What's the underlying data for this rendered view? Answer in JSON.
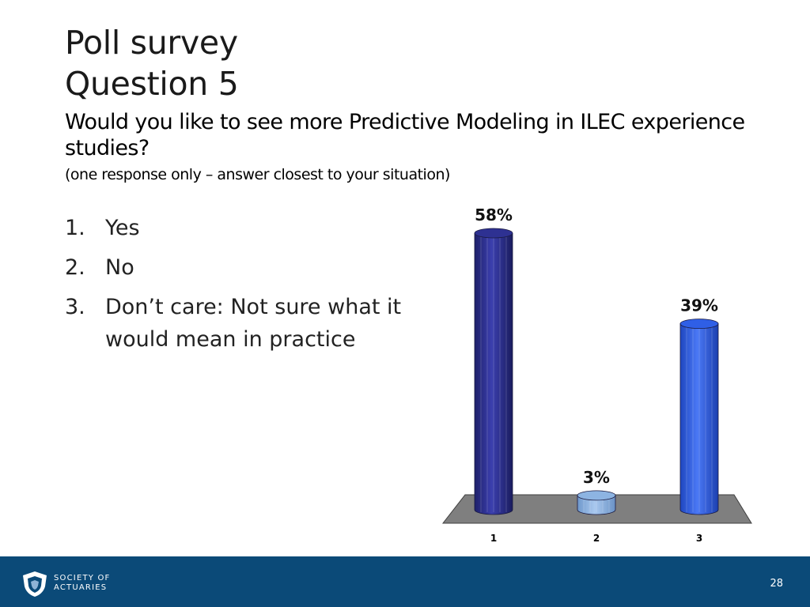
{
  "slide": {
    "title_line1": "Poll survey",
    "title_line2": "Question 5",
    "question": "Would you like to see more Predictive Modeling in ILEC experience studies?",
    "instruction": "(one response only – answer closest to your situation)",
    "options": [
      {
        "number": "1.",
        "text": "Yes"
      },
      {
        "number": "2.",
        "text": "No"
      },
      {
        "number": "3.",
        "text": "Don’t care: Not sure what it would mean in practice"
      }
    ]
  },
  "chart_data": {
    "type": "bar",
    "categories": [
      "1",
      "2",
      "3"
    ],
    "values": [
      58,
      3,
      39
    ],
    "data_labels": [
      "58%",
      "3%",
      "39%"
    ],
    "unit": "%",
    "ylim": [
      0,
      58
    ],
    "grid": false,
    "legend": "none",
    "colors": [
      "#2e3192",
      "#8db4e2",
      "#2f5fe6"
    ],
    "floor_color": "#7f7f7f"
  },
  "footer": {
    "org_line1": "SOCIETY OF",
    "org_line2": "ACTUARIES",
    "page_number": "28",
    "background_color": "#0b4a78",
    "logo_icon": "shield-logo-icon"
  }
}
